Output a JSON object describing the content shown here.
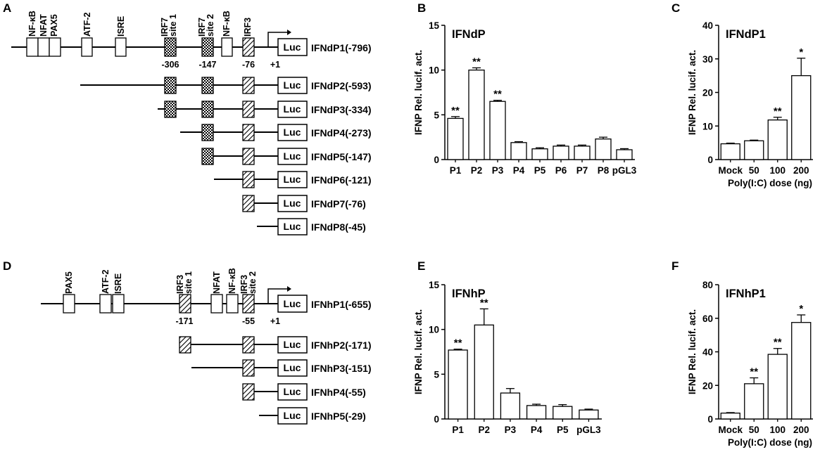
{
  "panel_labels": {
    "A": "A",
    "B": "B",
    "C": "C",
    "D": "D",
    "E": "E",
    "F": "F"
  },
  "diagram_A": {
    "element_labels": {
      "nfkb": "NF-κB",
      "nfat": "NFAT",
      "pax5": "PAX5",
      "atf2": "ATF-2",
      "isre": "ISRE",
      "irf7_1_a": "IRF7",
      "irf7_1_b": "site 1",
      "irf7_2_a": "IRF7",
      "irf7_2_b": "site 2",
      "nfkb2": "NF-κB",
      "irf3": "IRF3"
    },
    "positions": {
      "p306": "-306",
      "p147": "-147",
      "p76": "-76",
      "p1": "+1"
    },
    "luc": "Luc",
    "constructs": [
      "IFNdP1(-796)",
      "IFNdP2(-593)",
      "IFNdP3(-334)",
      "IFNdP4(-273)",
      "IFNdP5(-147)",
      "IFNdP6(-121)",
      "IFNdP7(-76)",
      "IFNdP8(-45)"
    ]
  },
  "diagram_D": {
    "element_labels": {
      "pax5": "PAX5",
      "atf2": "ATF-2",
      "isre": "ISRE",
      "irf3_1_a": "IRF3",
      "irf3_1_b": "site 1",
      "nfat": "NFAT",
      "nfkb": "NF-κB",
      "irf3_2_a": "IRF3",
      "irf3_2_b": "site 2"
    },
    "positions": {
      "p171": "-171",
      "p55": "-55",
      "p1": "+1"
    },
    "luc": "Luc",
    "constructs": [
      "IFNhP1(-655)",
      "IFNhP2(-171)",
      "IFNhP3(-151)",
      "IFNhP4(-55)",
      "IFNhP5(-29)"
    ]
  },
  "chart_data": [
    {
      "panel": "B",
      "type": "bar",
      "title": "IFNdP",
      "ylabel": "IFNP Rel. lucif. act.",
      "xlabel": "",
      "ylim": [
        0,
        15
      ],
      "yticks": [
        "0",
        "5",
        "10",
        "15"
      ],
      "categories": [
        "P1",
        "P2",
        "P3",
        "P4",
        "P5",
        "P6",
        "P7",
        "P8",
        "pGL3"
      ],
      "values": [
        4.6,
        10.0,
        6.5,
        1.9,
        1.2,
        1.5,
        1.5,
        2.3,
        1.1
      ],
      "errors": [
        0.2,
        0.25,
        0.12,
        0.1,
        0.12,
        0.12,
        0.12,
        0.2,
        0.12
      ],
      "significance": [
        "**",
        "**",
        "**",
        "",
        "",
        "",
        "",
        "",
        ""
      ]
    },
    {
      "panel": "C",
      "type": "bar",
      "title": "IFNdP1",
      "ylabel": "IFNP Rel. lucif. act.",
      "xlabel": "Poly(I:C) dose (ng)",
      "ylim": [
        0,
        40
      ],
      "yticks": [
        "0",
        "10",
        "20",
        "30",
        "40"
      ],
      "categories": [
        "Mock",
        "50",
        "100",
        "200"
      ],
      "values": [
        4.7,
        5.6,
        11.8,
        25.0
      ],
      "errors": [
        0.2,
        0.2,
        0.8,
        5.2
      ],
      "significance": [
        "",
        "",
        "**",
        "*"
      ]
    },
    {
      "panel": "E",
      "type": "bar",
      "title": "IFNhP",
      "ylabel": "IFNP Rel. lucif. act.",
      "xlabel": "",
      "ylim": [
        0,
        15
      ],
      "yticks": [
        "0",
        "5",
        "10",
        "15"
      ],
      "categories": [
        "P1",
        "P2",
        "P3",
        "P4",
        "P5",
        "pGL3"
      ],
      "values": [
        7.7,
        10.5,
        2.9,
        1.5,
        1.4,
        1.0
      ],
      "errors": [
        0.1,
        1.8,
        0.5,
        0.15,
        0.2,
        0.1
      ],
      "significance": [
        "**",
        "**",
        "",
        "",
        "",
        ""
      ]
    },
    {
      "panel": "F",
      "type": "bar",
      "title": "IFNhP1",
      "ylabel": "IFNP Rel. lucif. act.",
      "xlabel": "Poly(I:C) dose (ng)",
      "ylim": [
        0,
        80
      ],
      "yticks": [
        "0",
        "20",
        "40",
        "60",
        "80"
      ],
      "categories": [
        "Mock",
        "50",
        "100",
        "200"
      ],
      "values": [
        3.5,
        21.0,
        38.5,
        57.5
      ],
      "errors": [
        0.3,
        3.5,
        3.5,
        4.5
      ],
      "significance": [
        "",
        "**",
        "**",
        "*"
      ]
    }
  ]
}
